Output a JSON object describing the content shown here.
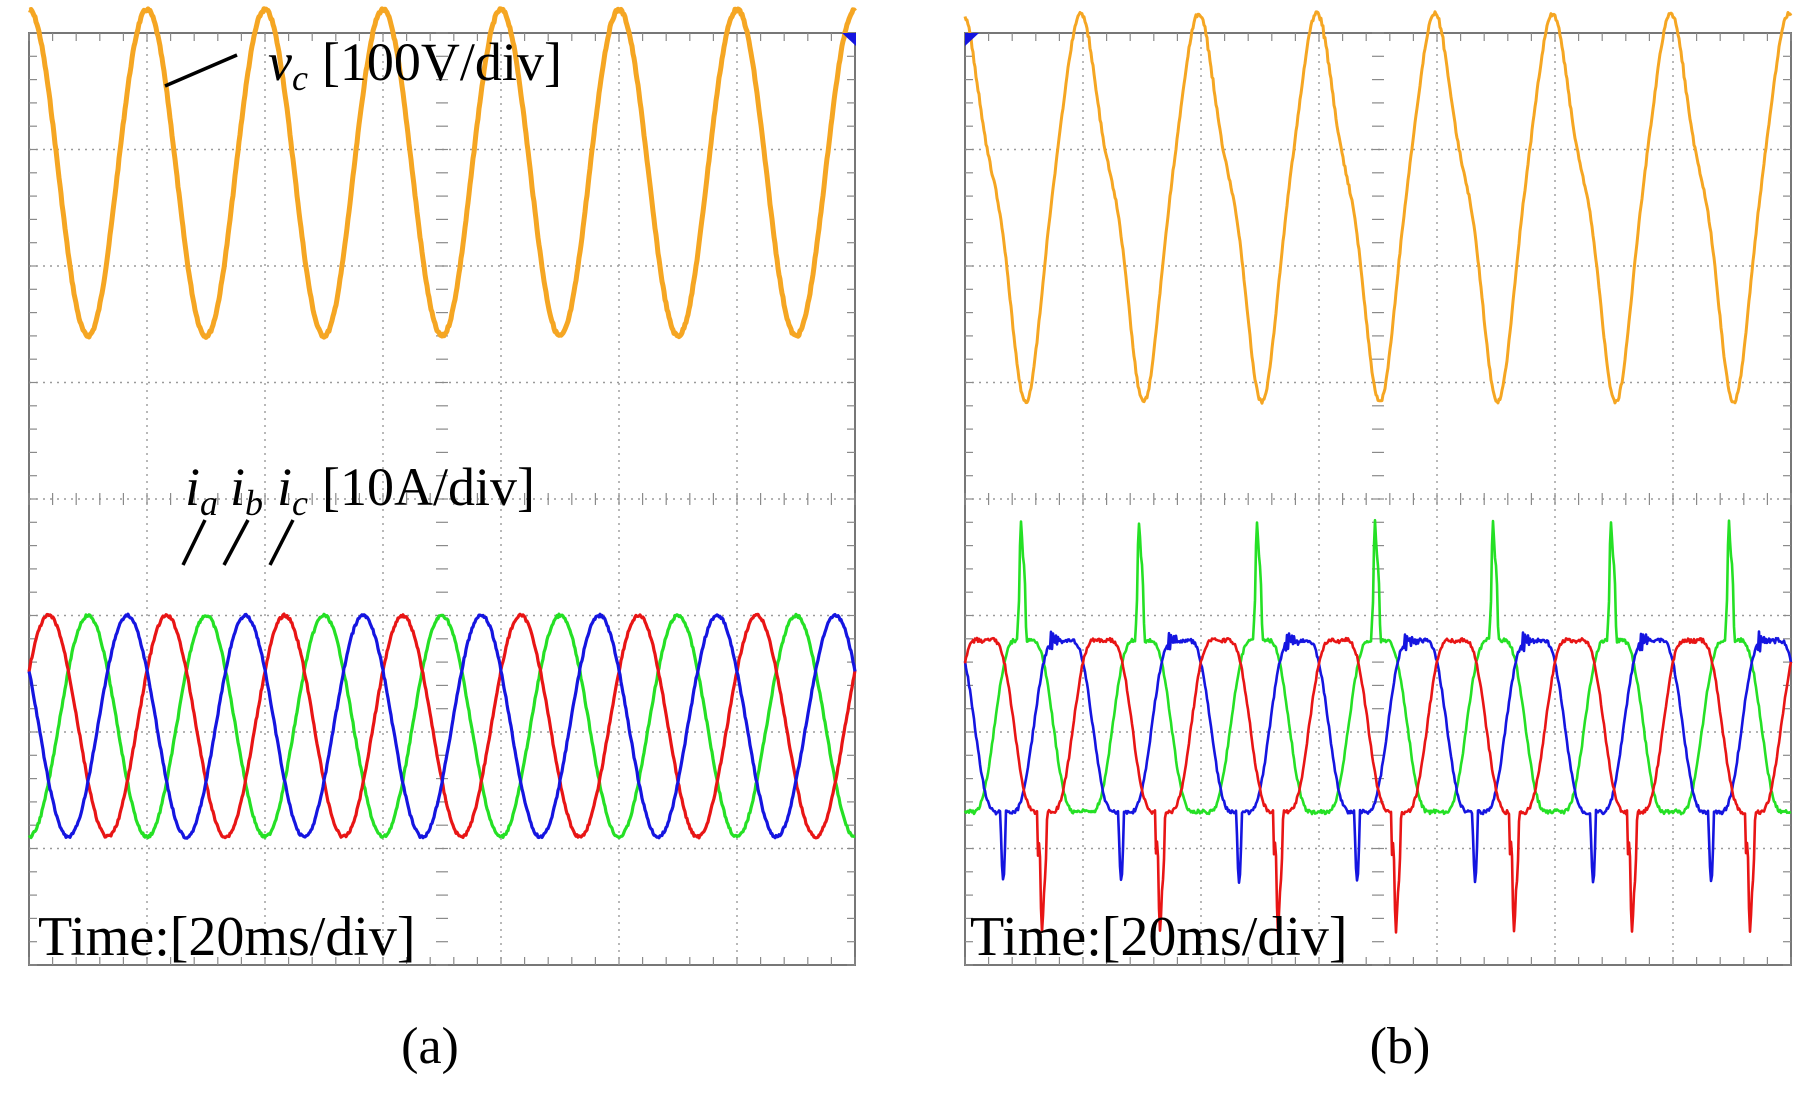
{
  "chart_data": [
    {
      "panel_label": "(a)",
      "type": "line",
      "title": "",
      "time_scale_label": "Time:[20ms/div]",
      "x": {
        "unit": "ms",
        "range": [
          0,
          140
        ],
        "divisions": 7,
        "per_div": 20
      },
      "grid": "dotted, 7x8 divisions",
      "voltage_annotation": {
        "symbol": "v",
        "subscript": "c",
        "scale": "[100V/div]"
      },
      "current_annotation": {
        "symbols": [
          {
            "symbol": "i",
            "subscript": "a"
          },
          {
            "symbol": "i",
            "subscript": "b"
          },
          {
            "symbol": "i",
            "subscript": "c"
          }
        ],
        "scale": "[10A/div]"
      },
      "series": [
        {
          "name": "v_c",
          "color": "#F5A623",
          "waveform": "sinusoidal",
          "fundamental_hz": 50,
          "peak_div": 1.4,
          "offset_div": 2.8,
          "phase_deg": 90,
          "distortion": "none"
        },
        {
          "name": "i_a",
          "color": "#1515E0",
          "waveform": "sinusoidal",
          "fundamental_hz": 50,
          "peak_div": 0.95,
          "offset_div": -1.95,
          "phase_deg": 150,
          "distortion": "none"
        },
        {
          "name": "i_b",
          "color": "#E81515",
          "waveform": "sinusoidal",
          "fundamental_hz": 50,
          "peak_div": 0.95,
          "offset_div": -1.95,
          "phase_deg": 30,
          "distortion": "none"
        },
        {
          "name": "i_c",
          "color": "#25E025",
          "waveform": "sinusoidal",
          "fundamental_hz": 50,
          "peak_div": 0.95,
          "offset_div": -1.95,
          "phase_deg": -90,
          "distortion": "none"
        }
      ]
    },
    {
      "panel_label": "(b)",
      "type": "line",
      "title": "",
      "time_scale_label": "Time:[20ms/div]",
      "x": {
        "unit": "ms",
        "range": [
          0,
          140
        ],
        "divisions": 7,
        "per_div": 20
      },
      "grid": "dotted, 7x8 divisions",
      "series": [
        {
          "name": "v_c",
          "color": "#F5A623",
          "waveform": "distorted sinusoid",
          "fundamental_hz": 50,
          "peak_div": 1.5,
          "offset_div": 2.6,
          "phase_deg": 90,
          "distortion": "harmonics + ringing"
        },
        {
          "name": "i_a",
          "color": "#1515E0",
          "waveform": "distorted",
          "fundamental_hz": 50,
          "distortion": "flat-top plateaus with oscillatory bursts"
        },
        {
          "name": "i_b",
          "color": "#E81515",
          "waveform": "distorted",
          "fundamental_hz": 50,
          "distortion": "negative spikes with oscillatory bursts"
        },
        {
          "name": "i_c",
          "color": "#25E025",
          "waveform": "distorted",
          "fundamental_hz": 50,
          "distortion": "positive spikes with oscillatory bursts"
        }
      ]
    }
  ]
}
